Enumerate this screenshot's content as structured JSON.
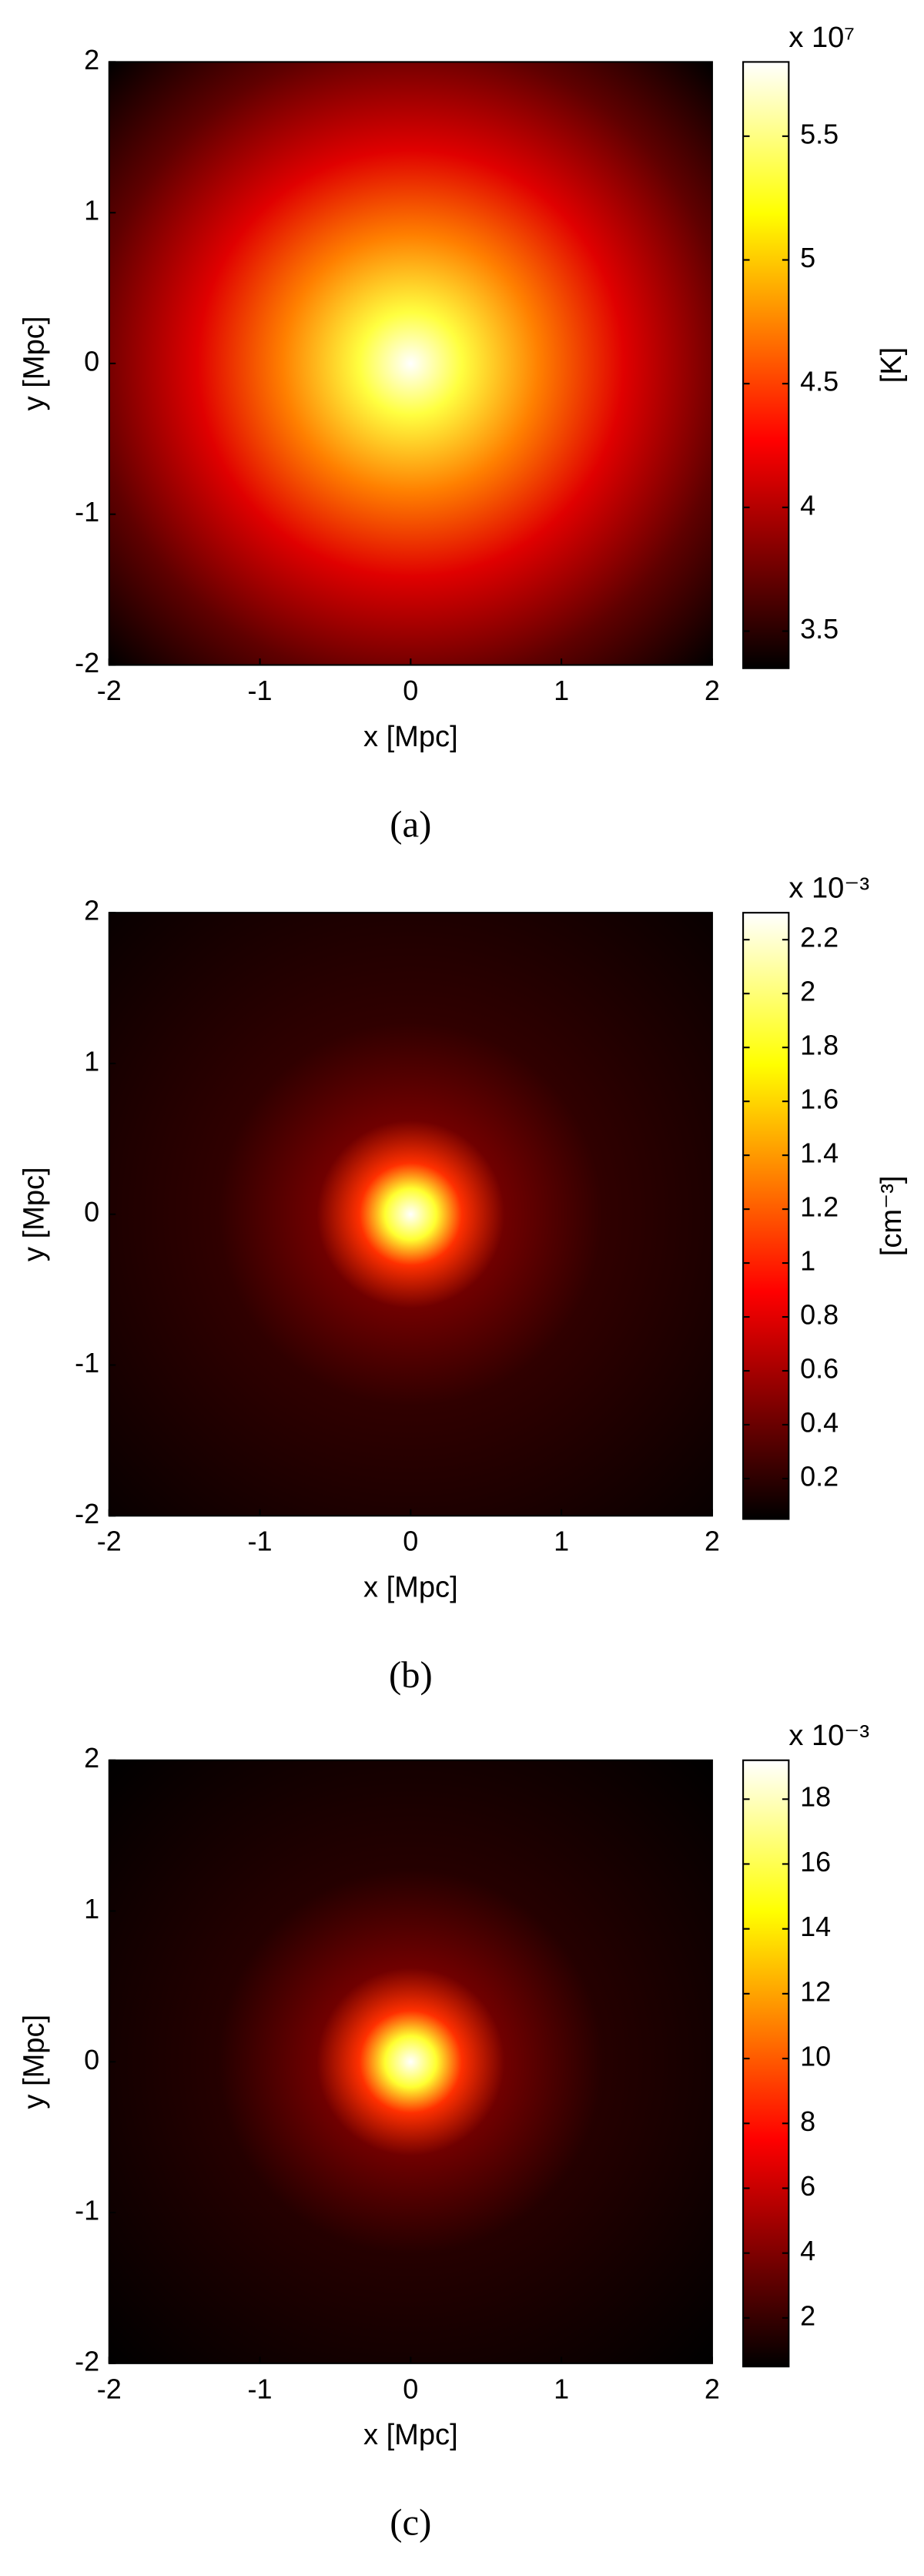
{
  "chart_data": [
    {
      "type": "heatmap",
      "colormap": "hot",
      "caption": "(a)",
      "xlabel": "x [Mpc]",
      "ylabel": "y [Mpc]",
      "xlim": [
        -2,
        2
      ],
      "ylim": [
        -2,
        2
      ],
      "xticks": [
        -2,
        -1,
        0,
        1,
        2
      ],
      "yticks": [
        -2,
        -1,
        0,
        1,
        2
      ],
      "colorbar_exponent": "x 10⁷",
      "colorbar_label": "[K]",
      "clim": [
        3.35,
        5.8
      ],
      "cticks": [
        3.5,
        4,
        4.5,
        5,
        5.5
      ]
    },
    {
      "type": "heatmap",
      "colormap": "hot",
      "caption": "(b)",
      "xlabel": "x [Mpc]",
      "ylabel": "y [Mpc]",
      "xlim": [
        -2,
        2
      ],
      "ylim": [
        -2,
        2
      ],
      "xticks": [
        -2,
        -1,
        0,
        1,
        2
      ],
      "yticks": [
        -2,
        -1,
        0,
        1,
        2
      ],
      "colorbar_exponent": "x 10⁻³",
      "colorbar_label": "[cm⁻³]",
      "clim": [
        0.05,
        2.3
      ],
      "cticks": [
        0.2,
        0.4,
        0.6,
        0.8,
        1,
        1.2,
        1.4,
        1.6,
        1.8,
        2,
        2.2
      ]
    },
    {
      "type": "heatmap",
      "colormap": "hot",
      "caption": "(c)",
      "xlabel": "x [Mpc]",
      "ylabel": "y [Mpc]",
      "xlim": [
        -2,
        2
      ],
      "ylim": [
        -2,
        2
      ],
      "xticks": [
        -2,
        -1,
        0,
        1,
        2
      ],
      "yticks": [
        -2,
        -1,
        0,
        1,
        2
      ],
      "colorbar_exponent": "x 10⁻³",
      "clim": [
        0.5,
        19.2
      ],
      "cticks": [
        2,
        4,
        6,
        8,
        10,
        12,
        14,
        16,
        18
      ]
    }
  ]
}
